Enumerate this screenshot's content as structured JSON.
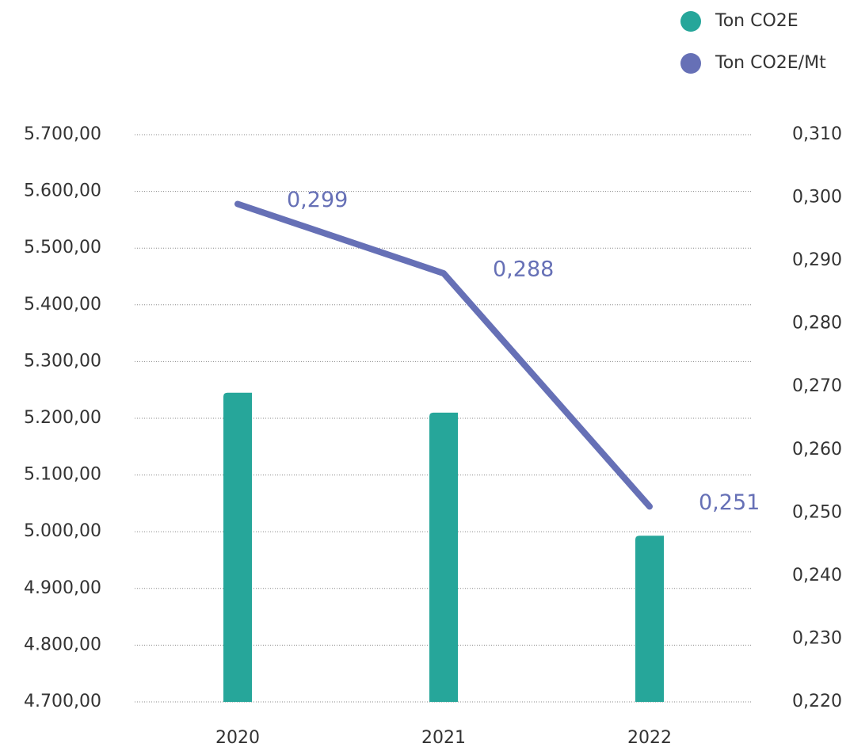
{
  "chart_data": {
    "type": "bar_line",
    "categories": [
      "2020",
      "2021",
      "2022"
    ],
    "series": [
      {
        "name": "Ton CO2E",
        "type": "bar",
        "color": "#26a69a",
        "values": [
          5245,
          5210,
          4993
        ]
      },
      {
        "name": "Ton CO2E/Mt",
        "type": "line",
        "axis": "y2",
        "color": "#6670b6",
        "values": [
          0.299,
          0.288,
          0.251
        ],
        "value_labels": [
          "0,299",
          "0,288",
          "0,251"
        ]
      }
    ],
    "ylim": [
      4700,
      5700
    ],
    "yticks": [
      {
        "value": 4700,
        "label": "4.700,00"
      },
      {
        "value": 4800,
        "label": "4.800,00"
      },
      {
        "value": 4900,
        "label": "4.900,00"
      },
      {
        "value": 5000,
        "label": "5.000,00"
      },
      {
        "value": 5100,
        "label": "5.100,00"
      },
      {
        "value": 5200,
        "label": "5.200,00"
      },
      {
        "value": 5300,
        "label": "5.300,00"
      },
      {
        "value": 5400,
        "label": "5.400,00"
      },
      {
        "value": 5500,
        "label": "5.500,00"
      },
      {
        "value": 5600,
        "label": "5.600,00"
      },
      {
        "value": 5700,
        "label": "5.700,00"
      }
    ],
    "y2lim": [
      0.22,
      0.31
    ],
    "y2ticks": [
      {
        "value": 0.22,
        "label": "0,220"
      },
      {
        "value": 0.23,
        "label": "0,230"
      },
      {
        "value": 0.24,
        "label": "0,240"
      },
      {
        "value": 0.25,
        "label": "0,250"
      },
      {
        "value": 0.26,
        "label": "0,260"
      },
      {
        "value": 0.27,
        "label": "0,270"
      },
      {
        "value": 0.28,
        "label": "0,280"
      },
      {
        "value": 0.29,
        "label": "0,290"
      },
      {
        "value": 0.3,
        "label": "0,300"
      },
      {
        "value": 0.31,
        "label": "0,310"
      }
    ],
    "grid": true,
    "legend": "top-right"
  }
}
